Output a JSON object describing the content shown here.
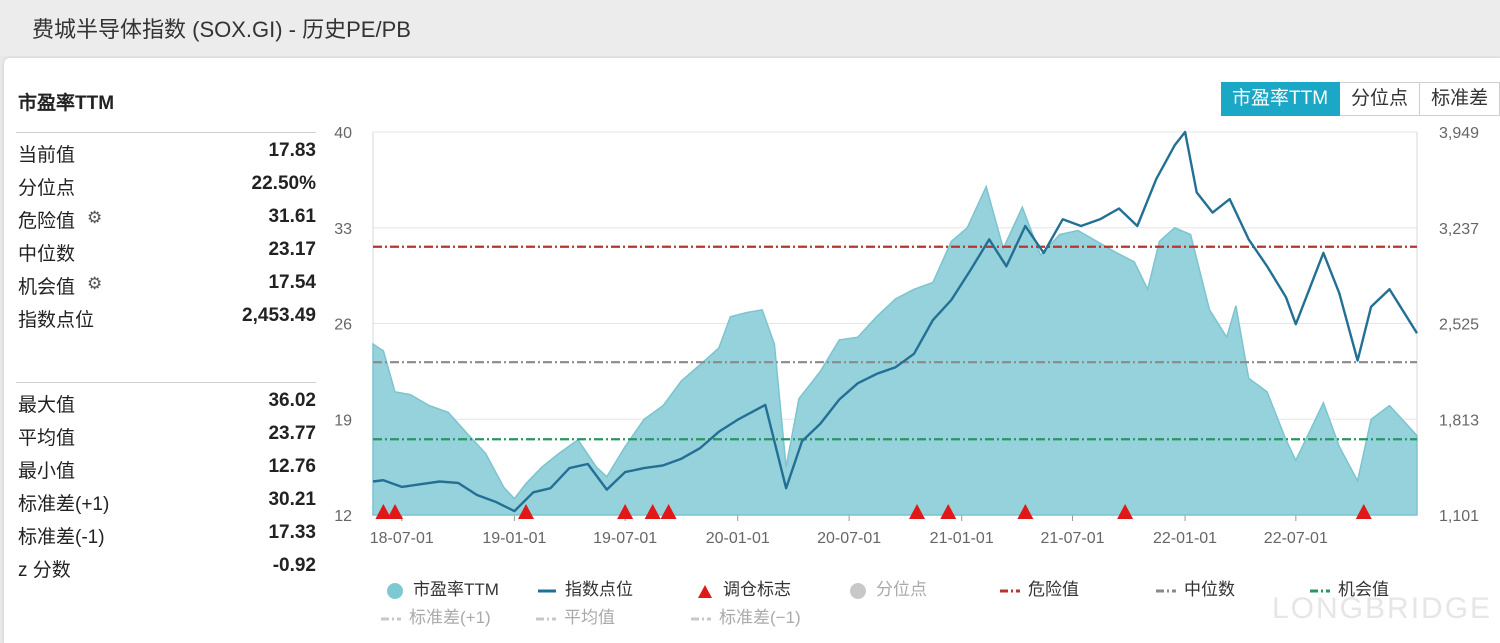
{
  "window": {
    "title": "费城半导体指数 (SOX.GI) - 历史PE/PB"
  },
  "stats": {
    "title": "市盈率TTM",
    "current": [
      {
        "label": "当前值",
        "value": "17.83",
        "gear": false
      },
      {
        "label": "分位点",
        "value": "22.50%",
        "gear": false
      },
      {
        "label": "危险值",
        "value": "31.61",
        "gear": true
      },
      {
        "label": "中位数",
        "value": "23.17",
        "gear": false
      },
      {
        "label": "机会值",
        "value": "17.54",
        "gear": true
      },
      {
        "label": "指数点位",
        "value": "2,453.49",
        "gear": false
      }
    ],
    "summary": [
      {
        "label": "最大值",
        "value": "36.02"
      },
      {
        "label": "平均值",
        "value": "23.77"
      },
      {
        "label": "最小值",
        "value": "12.76"
      },
      {
        "label": "标准差(+1)",
        "value": "30.21"
      },
      {
        "label": "标准差(-1)",
        "value": "17.33"
      },
      {
        "label": "z 分数",
        "value": "-0.92"
      }
    ]
  },
  "tabs": [
    {
      "label": "市盈率TTM",
      "active": true
    },
    {
      "label": "分位点",
      "active": false
    },
    {
      "label": "标准差",
      "active": false
    }
  ],
  "chart_data": {
    "type": "area",
    "y_left": {
      "ticks": [
        "40",
        "33",
        "26",
        "19",
        "12"
      ],
      "range": [
        12,
        40
      ]
    },
    "y_right": {
      "ticks": [
        "3,949",
        "3,237",
        "2,525",
        "1,813",
        "1,101"
      ],
      "range": [
        1101,
        3949
      ]
    },
    "x_ticks": [
      "18-07-01",
      "19-01-01",
      "19-07-01",
      "20-01-01",
      "20-07-01",
      "21-01-01",
      "21-07-01",
      "22-01-01",
      "22-07-01"
    ],
    "x_range": [
      "2018-05-15",
      "2023-01-15"
    ],
    "grid": true,
    "series": [
      {
        "name": "市盈率TTM",
        "axis": "left",
        "color": "#8fd0d9",
        "points": [
          [
            "2018-05-15",
            24.5
          ],
          [
            "2018-06-01",
            24.0
          ],
          [
            "2018-06-20",
            21.0
          ],
          [
            "2018-07-15",
            20.8
          ],
          [
            "2018-08-15",
            20.0
          ],
          [
            "2018-09-15",
            19.5
          ],
          [
            "2018-10-15",
            18.0
          ],
          [
            "2018-11-15",
            16.5
          ],
          [
            "2018-12-15",
            14.0
          ],
          [
            "2019-01-01",
            13.2
          ],
          [
            "2019-01-20",
            14.3
          ],
          [
            "2019-02-15",
            15.5
          ],
          [
            "2019-03-15",
            16.5
          ],
          [
            "2019-04-15",
            17.5
          ],
          [
            "2019-05-15",
            15.5
          ],
          [
            "2019-06-01",
            14.8
          ],
          [
            "2019-07-01",
            17.0
          ],
          [
            "2019-08-01",
            19.0
          ],
          [
            "2019-09-01",
            20.0
          ],
          [
            "2019-10-01",
            21.8
          ],
          [
            "2019-11-01",
            23.0
          ],
          [
            "2019-12-01",
            24.2
          ],
          [
            "2019-12-20",
            26.5
          ],
          [
            "2020-01-15",
            26.8
          ],
          [
            "2020-02-10",
            27.0
          ],
          [
            "2020-03-01",
            24.5
          ],
          [
            "2020-03-20",
            15.5
          ],
          [
            "2020-04-10",
            20.5
          ],
          [
            "2020-05-15",
            22.5
          ],
          [
            "2020-06-15",
            24.8
          ],
          [
            "2020-07-15",
            25.0
          ],
          [
            "2020-08-15",
            26.5
          ],
          [
            "2020-09-15",
            27.8
          ],
          [
            "2020-10-15",
            28.5
          ],
          [
            "2020-11-15",
            29.0
          ],
          [
            "2020-12-15",
            32.0
          ],
          [
            "2021-01-10",
            33.0
          ],
          [
            "2021-02-10",
            36.0
          ],
          [
            "2021-03-10",
            31.5
          ],
          [
            "2021-04-10",
            34.5
          ],
          [
            "2021-05-10",
            31.0
          ],
          [
            "2021-06-10",
            32.5
          ],
          [
            "2021-07-10",
            32.8
          ],
          [
            "2021-08-10",
            32.0
          ],
          [
            "2021-09-10",
            31.2
          ],
          [
            "2021-10-10",
            30.5
          ],
          [
            "2021-11-01",
            28.5
          ],
          [
            "2021-11-20",
            32.0
          ],
          [
            "2021-12-15",
            33.0
          ],
          [
            "2022-01-10",
            32.5
          ],
          [
            "2022-02-10",
            27.0
          ],
          [
            "2022-03-10",
            25.0
          ],
          [
            "2022-03-25",
            27.3
          ],
          [
            "2022-04-15",
            22.0
          ],
          [
            "2022-05-15",
            21.0
          ],
          [
            "2022-06-15",
            17.5
          ],
          [
            "2022-07-01",
            16.0
          ],
          [
            "2022-08-15",
            20.2
          ],
          [
            "2022-09-10",
            17.0
          ],
          [
            "2022-10-10",
            14.5
          ],
          [
            "2022-11-01",
            19.0
          ],
          [
            "2022-12-01",
            20.0
          ],
          [
            "2023-01-01",
            18.5
          ],
          [
            "2023-01-15",
            17.8
          ]
        ]
      },
      {
        "name": "指数点位",
        "axis": "right",
        "color": "#246f95",
        "points": [
          [
            "2018-05-15",
            1350
          ],
          [
            "2018-06-01",
            1360
          ],
          [
            "2018-07-01",
            1310
          ],
          [
            "2018-08-01",
            1330
          ],
          [
            "2018-09-01",
            1350
          ],
          [
            "2018-10-01",
            1340
          ],
          [
            "2018-11-01",
            1250
          ],
          [
            "2018-12-01",
            1200
          ],
          [
            "2019-01-01",
            1130
          ],
          [
            "2019-02-01",
            1270
          ],
          [
            "2019-03-01",
            1300
          ],
          [
            "2019-04-01",
            1450
          ],
          [
            "2019-05-01",
            1480
          ],
          [
            "2019-06-01",
            1290
          ],
          [
            "2019-07-01",
            1420
          ],
          [
            "2019-08-01",
            1450
          ],
          [
            "2019-09-01",
            1470
          ],
          [
            "2019-10-01",
            1520
          ],
          [
            "2019-11-01",
            1600
          ],
          [
            "2019-12-01",
            1720
          ],
          [
            "2020-01-01",
            1810
          ],
          [
            "2020-02-15",
            1920
          ],
          [
            "2020-03-20",
            1300
          ],
          [
            "2020-04-15",
            1650
          ],
          [
            "2020-05-15",
            1780
          ],
          [
            "2020-06-15",
            1960
          ],
          [
            "2020-07-15",
            2080
          ],
          [
            "2020-08-15",
            2150
          ],
          [
            "2020-09-15",
            2200
          ],
          [
            "2020-10-15",
            2300
          ],
          [
            "2020-11-15",
            2550
          ],
          [
            "2020-12-15",
            2700
          ],
          [
            "2021-01-15",
            2920
          ],
          [
            "2021-02-15",
            3150
          ],
          [
            "2021-03-15",
            2950
          ],
          [
            "2021-04-15",
            3250
          ],
          [
            "2021-05-15",
            3050
          ],
          [
            "2021-06-15",
            3300
          ],
          [
            "2021-07-15",
            3250
          ],
          [
            "2021-08-15",
            3300
          ],
          [
            "2021-09-15",
            3380
          ],
          [
            "2021-10-15",
            3250
          ],
          [
            "2021-11-15",
            3600
          ],
          [
            "2021-12-15",
            3850
          ],
          [
            "2022-01-01",
            3949
          ],
          [
            "2022-01-20",
            3500
          ],
          [
            "2022-02-15",
            3350
          ],
          [
            "2022-03-15",
            3450
          ],
          [
            "2022-04-15",
            3150
          ],
          [
            "2022-05-15",
            2950
          ],
          [
            "2022-06-15",
            2720
          ],
          [
            "2022-07-01",
            2520
          ],
          [
            "2022-08-15",
            3050
          ],
          [
            "2022-09-10",
            2750
          ],
          [
            "2022-10-10",
            2250
          ],
          [
            "2022-11-01",
            2650
          ],
          [
            "2022-12-01",
            2780
          ],
          [
            "2023-01-15",
            2453
          ]
        ]
      }
    ],
    "reference_lines": [
      {
        "name": "危险值",
        "value": 31.61,
        "color": "#b8352e",
        "style": "dash-dot"
      },
      {
        "name": "中位数",
        "value": 23.17,
        "color": "#8a8a8a",
        "style": "dash-dot"
      },
      {
        "name": "机会值",
        "value": 17.54,
        "color": "#2a9560",
        "style": "dash-dot"
      }
    ],
    "markers": {
      "name": "调仓标志",
      "color": "#e01818",
      "dates": [
        "2018-06-01",
        "2018-06-20",
        "2019-01-20",
        "2019-07-01",
        "2019-08-15",
        "2019-09-10",
        "2020-10-20",
        "2020-12-10",
        "2021-04-15",
        "2021-09-25",
        "2022-10-20"
      ]
    },
    "legend": [
      {
        "label": "市盈率TTM",
        "sym": "dot",
        "color": "#7cc8d3",
        "faded": false
      },
      {
        "label": "指数点位",
        "sym": "line",
        "color": "#246f95",
        "faded": false
      },
      {
        "label": "调仓标志",
        "sym": "tri",
        "color": "#e01818",
        "faded": false
      },
      {
        "label": "分位点",
        "sym": "dot",
        "color": "#c8c8c8",
        "faded": true
      },
      {
        "label": "危险值",
        "sym": "dash",
        "color": "#b8352e",
        "faded": false
      },
      {
        "label": "中位数",
        "sym": "dash",
        "color": "#8a8a8a",
        "faded": false
      },
      {
        "label": "机会值",
        "sym": "dash",
        "color": "#2a9560",
        "faded": false
      },
      {
        "label": "标准差(+1)",
        "sym": "dash",
        "color": "#c8c8c8",
        "faded": true
      },
      {
        "label": "平均值",
        "sym": "dash",
        "color": "#c8c8c8",
        "faded": true
      },
      {
        "label": "标准差(−1)",
        "sym": "dash",
        "color": "#c8c8c8",
        "faded": true
      }
    ]
  },
  "watermark": "LONGBRIDGE"
}
